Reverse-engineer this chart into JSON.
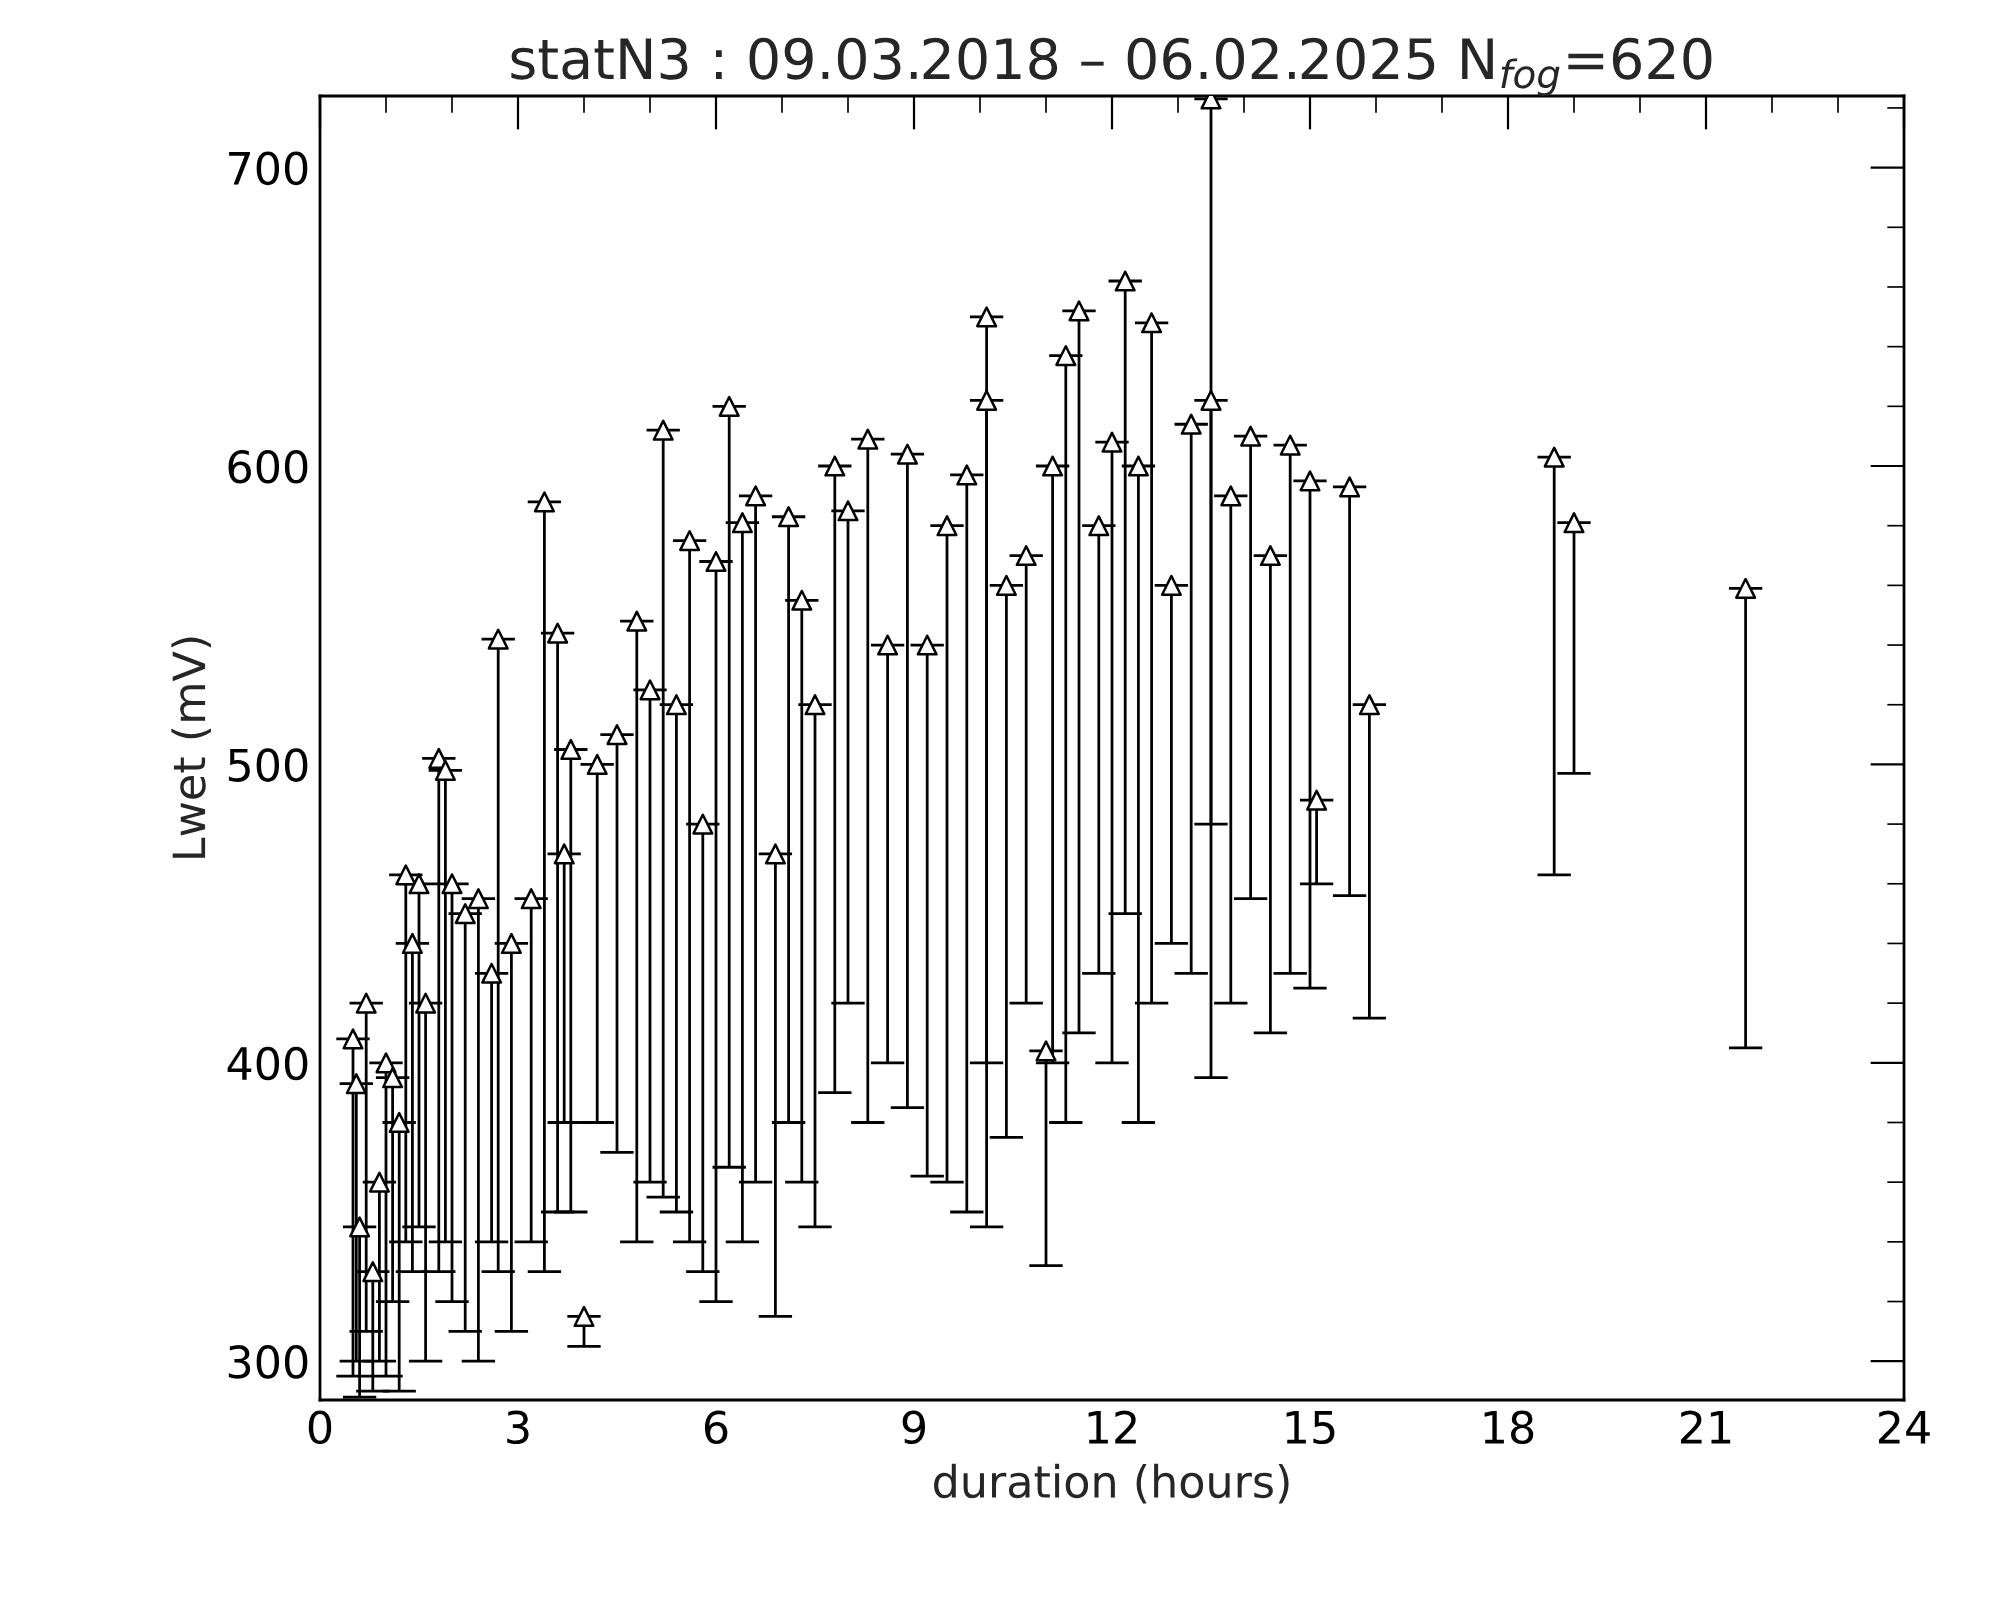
{
  "chart_data": {
    "type": "scatter",
    "title": "statN3 : 09.03.2018 – 06.02.2025 N$_{fog}$=620",
    "xlabel": "duration (hours)",
    "ylabel": "Lwet (mV)",
    "xlim": [
      0,
      24
    ],
    "xticks": [
      0,
      3,
      6,
      9,
      12,
      15,
      18,
      21,
      24
    ],
    "ylim": [
      287,
      724
    ],
    "yticks": [
      300,
      400,
      500,
      600,
      700
    ],
    "grid": false,
    "marker": "triangle",
    "color": "#000000",
    "x": [
      0.5,
      0.55,
      0.6,
      0.7,
      0.8,
      0.9,
      1.0,
      1.1,
      1.2,
      1.3,
      1.4,
      1.5,
      1.6,
      1.8,
      1.9,
      2.0,
      2.2,
      2.4,
      2.6,
      2.7,
      2.9,
      3.2,
      3.4,
      3.6,
      3.7,
      3.8,
      4.0,
      4.2,
      4.5,
      4.8,
      5.0,
      5.2,
      5.4,
      5.6,
      5.8,
      6.0,
      6.2,
      6.4,
      6.6,
      6.9,
      7.1,
      7.3,
      7.5,
      7.8,
      8.0,
      8.3,
      8.6,
      8.9,
      9.2,
      9.5,
      9.8,
      10.1,
      10.1,
      10.4,
      10.7,
      11.0,
      11.1,
      11.3,
      11.5,
      11.8,
      12.0,
      12.2,
      12.4,
      12.6,
      12.9,
      13.2,
      13.5,
      13.5,
      13.8,
      14.1,
      14.4,
      14.7,
      15.0,
      15.1,
      15.6,
      15.9,
      18.7,
      19.0,
      21.6
    ],
    "values": [
      408,
      393,
      345,
      420,
      330,
      360,
      400,
      395,
      380,
      463,
      440,
      460,
      420,
      502,
      498,
      460,
      450,
      455,
      430,
      542,
      440,
      455,
      588,
      544,
      470,
      505,
      315,
      500,
      510,
      548,
      525,
      612,
      520,
      575,
      480,
      568,
      620,
      581,
      590,
      470,
      583,
      555,
      520,
      600,
      585,
      609,
      540,
      604,
      540,
      580,
      597,
      650,
      622,
      560,
      570,
      404,
      600,
      637,
      652,
      580,
      608,
      662,
      600,
      648,
      560,
      614,
      723,
      622,
      590,
      610,
      570,
      607,
      595,
      488,
      593,
      520,
      603,
      581,
      559
    ],
    "errors": [
      [
        295,
        408
      ],
      [
        300,
        393
      ],
      [
        288,
        345
      ],
      [
        310,
        420
      ],
      [
        290,
        330
      ],
      [
        300,
        360
      ],
      [
        295,
        400
      ],
      [
        320,
        395
      ],
      [
        290,
        380
      ],
      [
        340,
        463
      ],
      [
        330,
        440
      ],
      [
        345,
        460
      ],
      [
        300,
        420
      ],
      [
        330,
        502
      ],
      [
        340,
        498
      ],
      [
        320,
        460
      ],
      [
        310,
        450
      ],
      [
        300,
        455
      ],
      [
        340,
        430
      ],
      [
        330,
        542
      ],
      [
        310,
        440
      ],
      [
        340,
        455
      ],
      [
        330,
        588
      ],
      [
        350,
        544
      ],
      [
        380,
        470
      ],
      [
        350,
        505
      ],
      [
        305,
        315
      ],
      [
        380,
        500
      ],
      [
        370,
        510
      ],
      [
        340,
        548
      ],
      [
        360,
        525
      ],
      [
        355,
        612
      ],
      [
        350,
        520
      ],
      [
        340,
        575
      ],
      [
        330,
        480
      ],
      [
        320,
        568
      ],
      [
        365,
        620
      ],
      [
        340,
        581
      ],
      [
        360,
        590
      ],
      [
        315,
        470
      ],
      [
        380,
        583
      ],
      [
        360,
        555
      ],
      [
        345,
        520
      ],
      [
        390,
        600
      ],
      [
        420,
        585
      ],
      [
        380,
        609
      ],
      [
        400,
        540
      ],
      [
        385,
        604
      ],
      [
        362,
        540
      ],
      [
        360,
        580
      ],
      [
        350,
        597
      ],
      [
        345,
        650
      ],
      [
        400,
        622
      ],
      [
        375,
        560
      ],
      [
        420,
        570
      ],
      [
        332,
        404
      ],
      [
        400,
        600
      ],
      [
        380,
        637
      ],
      [
        410,
        652
      ],
      [
        430,
        580
      ],
      [
        400,
        608
      ],
      [
        450,
        662
      ],
      [
        380,
        600
      ],
      [
        420,
        648
      ],
      [
        440,
        560
      ],
      [
        430,
        614
      ],
      [
        395,
        723
      ],
      [
        480,
        622
      ],
      [
        420,
        590
      ],
      [
        455,
        610
      ],
      [
        410,
        570
      ],
      [
        430,
        607
      ],
      [
        425,
        595
      ],
      [
        460,
        488
      ],
      [
        456,
        593
      ],
      [
        415,
        520
      ],
      [
        463,
        603
      ],
      [
        497,
        581
      ],
      [
        405,
        559
      ]
    ]
  }
}
